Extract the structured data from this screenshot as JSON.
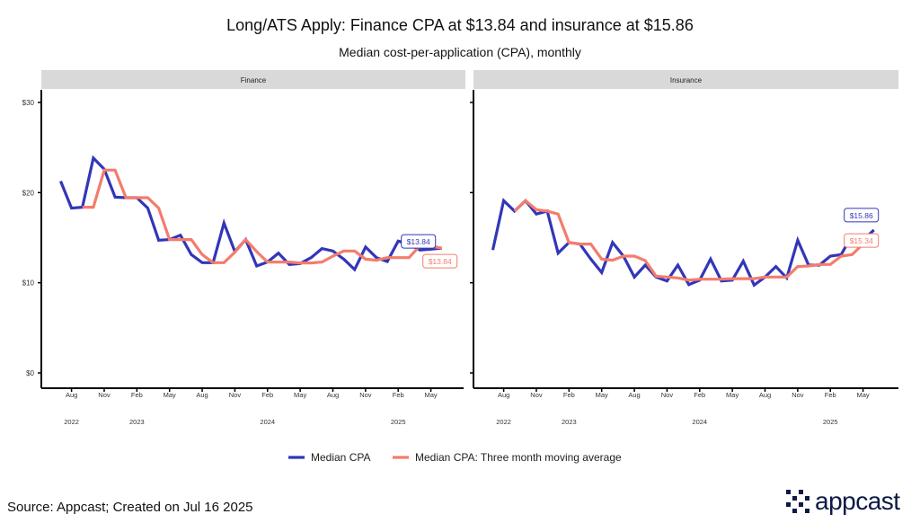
{
  "title": "Long/ATS Apply: Finance CPA at $13.84 and insurance at $15.86",
  "subtitle": "Median cost-per-application (CPA), monthly",
  "source": "Source: Appcast; Created on Jul 16 2025",
  "logo_text": "appcast",
  "colors": {
    "median": "#3236b8",
    "moving_avg": "#f47c6c",
    "strip": "#d9d9d9"
  },
  "chart_data": {
    "type": "line",
    "title": "Long/ATS Apply: Finance CPA at $13.84 and insurance at $15.86",
    "ylabel": "Median CPA",
    "ylim": [
      0,
      30
    ],
    "y_ticks": [
      "$0",
      "$10",
      "$20",
      "$30"
    ],
    "y_tick_values": [
      0,
      10,
      20,
      30
    ],
    "x_start": "2022-07",
    "x_tick_labels": [
      {
        "label": "Aug",
        "month": 1
      },
      {
        "label": "Nov",
        "month": 4
      },
      {
        "label": "Feb",
        "month": 7
      },
      {
        "label": "May",
        "month": 10
      },
      {
        "label": "Aug",
        "month": 13
      },
      {
        "label": "Nov",
        "month": 16
      },
      {
        "label": "Feb",
        "month": 19
      },
      {
        "label": "May",
        "month": 22
      },
      {
        "label": "Aug",
        "month": 25
      },
      {
        "label": "Nov",
        "month": 28
      },
      {
        "label": "Feb",
        "month": 31
      },
      {
        "label": "May",
        "month": 34
      }
    ],
    "year_labels": [
      {
        "label": "2022",
        "month": 1
      },
      {
        "label": "2023",
        "month": 7
      },
      {
        "label": "2024",
        "month": 19
      },
      {
        "label": "2025",
        "month": 31
      }
    ],
    "legend": [
      "Median CPA",
      "Median CPA: Three month moving average"
    ],
    "legend_position": "bottom",
    "grid": false,
    "panels": [
      {
        "name": "Finance",
        "series": [
          {
            "name": "Median CPA",
            "values": [
              21.27,
              18.28,
              18.38,
              23.83,
              22.6,
              19.5,
              19.44,
              19.44,
              18.28,
              14.72,
              14.79,
              15.28,
              13.13,
              12.23,
              12.23,
              16.62,
              13.46,
              14.79,
              11.86,
              12.3,
              13.29,
              12.03,
              12.13,
              12.79,
              13.79,
              13.52,
              12.62,
              11.47,
              13.96,
              12.79,
              12.36,
              14.62,
              14.29,
              13.62,
              13.72,
              13.84
            ]
          },
          {
            "name": "Median CPA: Three month moving average",
            "values": [
              null,
              null,
              18.38,
              18.38,
              22.5,
              22.5,
              19.44,
              19.44,
              19.44,
              18.28,
              14.79,
              14.79,
              14.79,
              13.13,
              12.23,
              12.23,
              13.4,
              14.79,
              13.46,
              12.3,
              12.3,
              12.3,
              12.2,
              12.2,
              12.3,
              12.95,
              13.52,
              13.52,
              12.62,
              12.5,
              12.79,
              12.79,
              12.79,
              14.12,
              14.05,
              13.84
            ]
          }
        ],
        "labels": {
          "median": "$13.84",
          "moving_avg": "$13.84"
        }
      },
      {
        "name": "Insurance",
        "series": [
          {
            "name": "Median CPA",
            "values": [
              13.63,
              19.11,
              17.95,
              19.11,
              17.62,
              17.95,
              13.29,
              14.46,
              14.29,
              12.63,
              11.13,
              14.46,
              12.96,
              10.63,
              11.96,
              10.63,
              10.2,
              11.96,
              9.8,
              10.3,
              12.63,
              10.2,
              10.3,
              12.4,
              9.74,
              10.63,
              11.8,
              10.53,
              14.72,
              11.96,
              11.96,
              12.96,
              13.13,
              15.29,
              14.72,
              15.86
            ]
          },
          {
            "name": "Median CPA: Three month moving average",
            "values": [
              null,
              null,
              17.95,
              19.11,
              18.1,
              17.95,
              17.62,
              14.46,
              14.29,
              14.29,
              12.63,
              12.5,
              12.96,
              12.96,
              12.46,
              10.73,
              10.63,
              10.53,
              10.3,
              10.4,
              10.4,
              10.4,
              10.46,
              10.46,
              10.46,
              10.63,
              10.63,
              10.63,
              11.8,
              11.86,
              12.03,
              12.03,
              12.96,
              13.13,
              14.3,
              15.34
            ]
          }
        ],
        "labels": {
          "median": "$15.86",
          "moving_avg": "$15.34"
        }
      }
    ]
  }
}
